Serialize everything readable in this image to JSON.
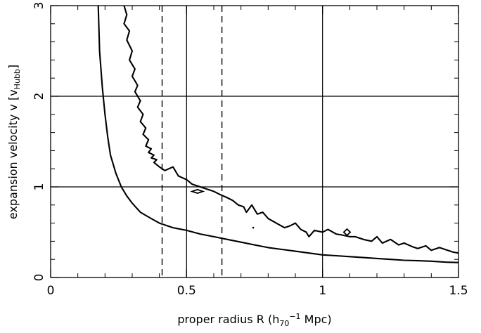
{
  "chart_data": {
    "type": "line",
    "xlabel": {
      "main": "proper radius R (h",
      "sub": "70",
      "sup": "−1",
      "tail": " Mpc)"
    },
    "ylabel": {
      "main": "expansion velocity v [v",
      "sub": "Hubb",
      "tail": "]"
    },
    "xlim": [
      0,
      1.5
    ],
    "ylim": [
      0,
      3
    ],
    "xticks": [
      {
        "value": 0,
        "label": "0"
      },
      {
        "value": 0.5,
        "label": "0.5"
      },
      {
        "value": 1,
        "label": "1"
      },
      {
        "value": 1.5,
        "label": "1.5"
      }
    ],
    "yticks": [
      {
        "value": 0,
        "label": "0"
      },
      {
        "value": 1,
        "label": "1"
      },
      {
        "value": 2,
        "label": "2"
      },
      {
        "value": 3,
        "label": "3"
      }
    ],
    "x_minor_step": 0.1,
    "y_minor_step": 0.2,
    "reference_lines": {
      "horizontal_solid": [
        1,
        2
      ],
      "vertical_solid": [
        0.5,
        1
      ],
      "vertical_dashed": [
        0.41,
        0.63
      ]
    },
    "series": [
      {
        "style": "solid",
        "x": [
          0.175,
          0.18,
          0.19,
          0.2,
          0.21,
          0.22,
          0.24,
          0.26,
          0.28,
          0.3,
          0.33,
          0.37,
          0.4,
          0.45,
          0.5,
          0.55,
          0.6,
          0.65,
          0.7,
          0.75,
          0.8,
          0.85,
          0.9,
          0.95,
          1.0,
          1.05,
          1.1,
          1.15,
          1.2,
          1.25,
          1.3,
          1.35,
          1.4,
          1.45,
          1.5
        ],
        "y": [
          3.0,
          2.5,
          2.1,
          1.8,
          1.55,
          1.35,
          1.15,
          1.0,
          0.9,
          0.82,
          0.72,
          0.65,
          0.6,
          0.55,
          0.52,
          0.48,
          0.45,
          0.42,
          0.39,
          0.36,
          0.33,
          0.31,
          0.29,
          0.27,
          0.25,
          0.24,
          0.23,
          0.22,
          0.21,
          0.2,
          0.19,
          0.185,
          0.18,
          0.17,
          0.165
        ]
      },
      {
        "style": "solid",
        "x": [
          0.27,
          0.28,
          0.27,
          0.29,
          0.28,
          0.3,
          0.29,
          0.31,
          0.3,
          0.32,
          0.31,
          0.33,
          0.32,
          0.34,
          0.33,
          0.35,
          0.34,
          0.36,
          0.35,
          0.37,
          0.36,
          0.38,
          0.37,
          0.39,
          0.38,
          0.4,
          0.42,
          0.45,
          0.47,
          0.5,
          0.52,
          0.55,
          0.58,
          0.6,
          0.62,
          0.65,
          0.67,
          0.69,
          0.71,
          0.72,
          0.74,
          0.76,
          0.78,
          0.8,
          0.83,
          0.86,
          0.88,
          0.9,
          0.92,
          0.94,
          0.95,
          0.97,
          1.0,
          1.02,
          1.05,
          1.07,
          1.1,
          1.12,
          1.15,
          1.18,
          1.2,
          1.22,
          1.25,
          1.28,
          1.3,
          1.33,
          1.35,
          1.38,
          1.4,
          1.43,
          1.45,
          1.48,
          1.5
        ],
        "y": [
          3.0,
          2.9,
          2.8,
          2.72,
          2.62,
          2.5,
          2.4,
          2.3,
          2.22,
          2.12,
          2.05,
          1.95,
          1.88,
          1.8,
          1.72,
          1.65,
          1.58,
          1.52,
          1.45,
          1.42,
          1.38,
          1.35,
          1.32,
          1.3,
          1.27,
          1.22,
          1.18,
          1.22,
          1.12,
          1.08,
          1.03,
          1.0,
          0.97,
          0.95,
          0.92,
          0.88,
          0.85,
          0.8,
          0.78,
          0.72,
          0.8,
          0.7,
          0.72,
          0.65,
          0.6,
          0.55,
          0.57,
          0.6,
          0.53,
          0.5,
          0.45,
          0.52,
          0.5,
          0.53,
          0.48,
          0.47,
          0.45,
          0.45,
          0.42,
          0.4,
          0.45,
          0.38,
          0.42,
          0.36,
          0.38,
          0.34,
          0.32,
          0.35,
          0.3,
          0.33,
          0.31,
          0.28,
          0.27
        ]
      }
    ],
    "small_loops": [
      {
        "cx": 0.54,
        "cy": 0.95,
        "rx": 0.02,
        "ry": 0.02
      },
      {
        "cx": 1.09,
        "cy": 0.5,
        "rx": 0.012,
        "ry": 0.035
      }
    ],
    "dots": [
      {
        "x": 0.745,
        "y": 0.55
      }
    ]
  }
}
